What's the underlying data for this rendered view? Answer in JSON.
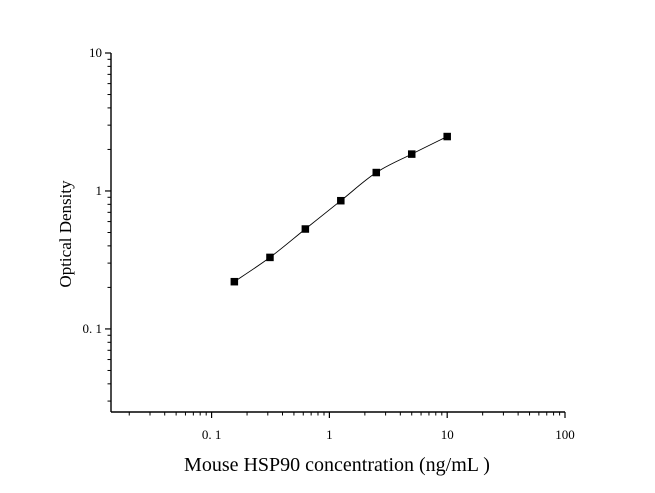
{
  "chart_data": {
    "type": "scatter",
    "title": "",
    "xlabel": "Mouse HSP90 concentration (ng/mL )",
    "ylabel": "Optical Density",
    "x_scale": "log",
    "y_scale": "log",
    "xlim": [
      0.014,
      100
    ],
    "ylim": [
      0.025,
      10
    ],
    "x_ticks": [
      {
        "value": 0.1,
        "label": "0. 1"
      },
      {
        "value": 1,
        "label": "1"
      },
      {
        "value": 10,
        "label": "10"
      },
      {
        "value": 100,
        "label": "100"
      }
    ],
    "y_ticks": [
      {
        "value": 0.1,
        "label": "0. 1"
      },
      {
        "value": 1,
        "label": "1"
      },
      {
        "value": 10,
        "label": "10"
      }
    ],
    "grid": false,
    "legend": "none",
    "series": [
      {
        "x": [
          0.156,
          0.313,
          0.625,
          1.25,
          2.5,
          5,
          10
        ],
        "y": [
          0.22,
          0.33,
          0.53,
          0.85,
          1.36,
          1.85,
          2.48
        ]
      }
    ],
    "marker": "square",
    "fit_curve": true,
    "colors": {
      "marker": "#000000",
      "curve": "#000000",
      "axis": "#000000"
    }
  }
}
